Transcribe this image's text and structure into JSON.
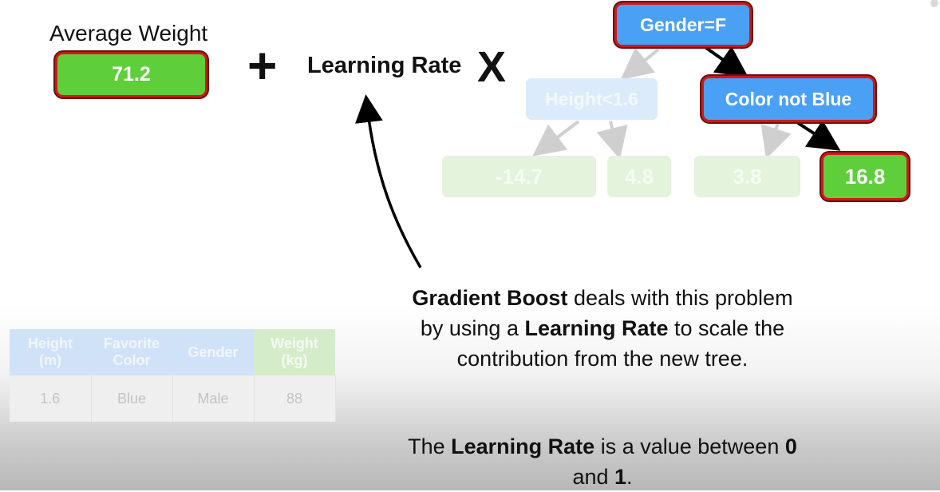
{
  "average_weight": {
    "label": "Average Weight",
    "value": "71.2"
  },
  "formula": {
    "plus": "+",
    "learning_rate": "Learning Rate",
    "times": "X"
  },
  "tree": {
    "root": "Gender=F",
    "left_node": "Height<1.6",
    "right_node": "Color not Blue",
    "leaves": [
      "-14.7",
      "4.8",
      "3.8",
      "16.8"
    ]
  },
  "explanation": {
    "part1_bold": "Gradient Boost",
    "part1_rest": " deals with this problem by using a ",
    "part2_bold": "Learning Rate",
    "part2_rest": " to scale the contribution from the new tree."
  },
  "lr_note": {
    "pre": "The ",
    "bold": "Learning Rate",
    "mid": " is a value between ",
    "zero": "0",
    "and": " and ",
    "one": "1",
    "end": "."
  },
  "table": {
    "headers": [
      {
        "line1": "Height",
        "line2": "(m)"
      },
      {
        "line1": "Favorite",
        "line2": "Color"
      },
      {
        "line1": "Gender",
        "line2": ""
      },
      {
        "line1": "Weight",
        "line2": "(kg)"
      }
    ],
    "rows": [
      [
        "1.6",
        "Blue",
        "Male",
        "88"
      ]
    ]
  },
  "colors": {
    "leaf_green": "#5ecf3a",
    "node_blue": "#4aa0f5",
    "highlight_red": "#cc1a1a"
  }
}
